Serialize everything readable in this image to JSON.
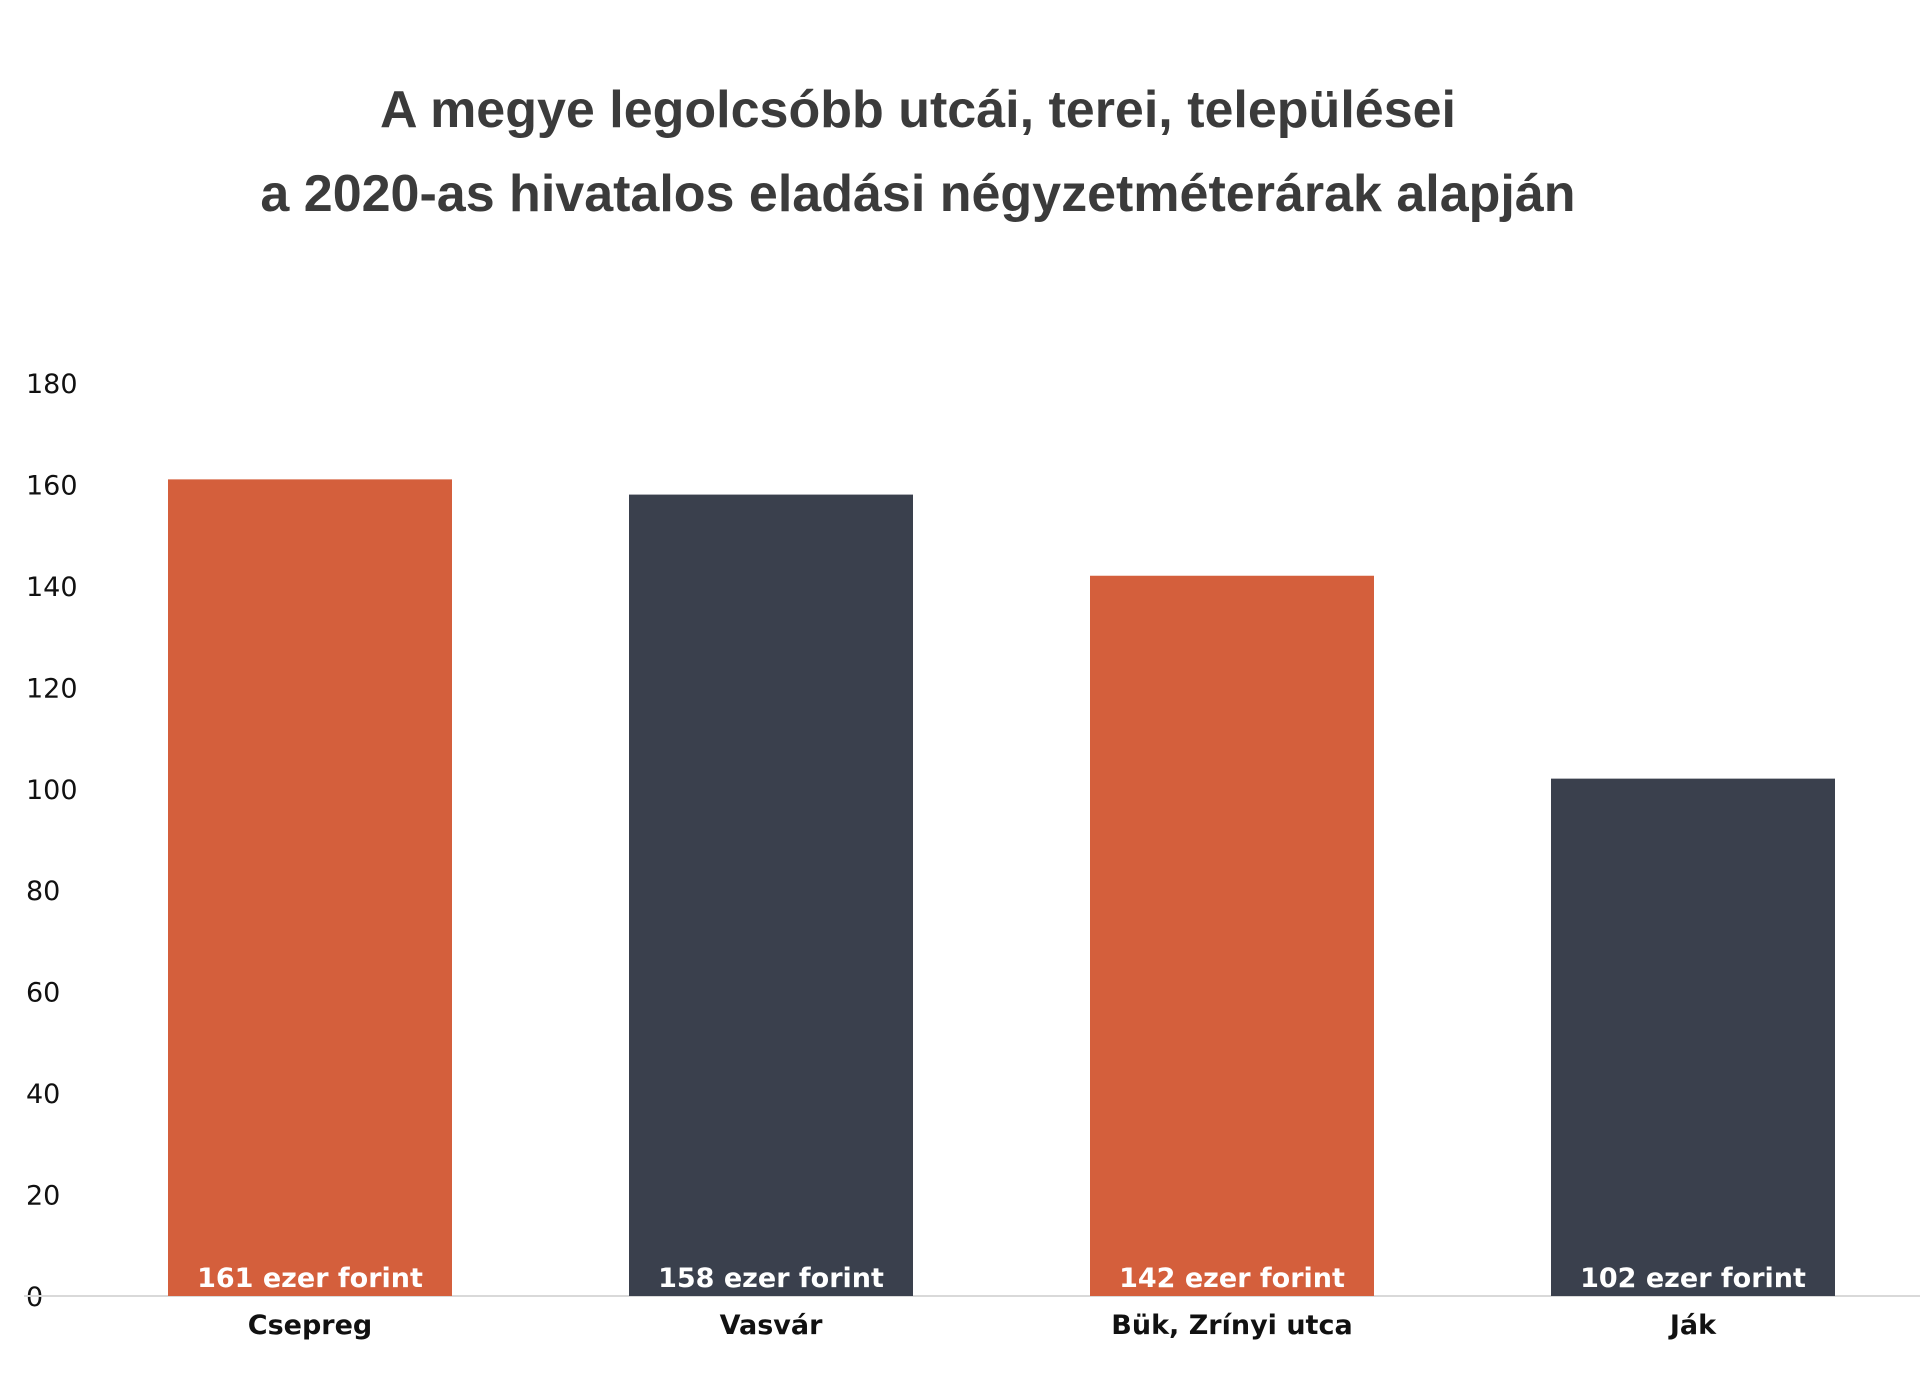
{
  "chart_data": {
    "type": "bar",
    "title_lines": [
      "A megye legolcsóbb utcái, terei, települései",
      "a 2020-as hivatalos eladási négyzetméterárak alapján"
    ],
    "categories": [
      "Csepreg",
      "Vasvár",
      "Bük, Zrínyi utca",
      "Ják"
    ],
    "values": [
      161,
      158,
      142,
      102
    ],
    "data_labels": [
      "161 ezer forint",
      "158 ezer forint",
      "142 ezer forint",
      "102 ezer forint"
    ],
    "bar_colors": [
      "#d45f3c",
      "#3a404d",
      "#d45f3c",
      "#3a404d"
    ],
    "ylim": [
      0,
      180
    ],
    "yticks": [
      0,
      20,
      40,
      60,
      80,
      100,
      120,
      140,
      160,
      180
    ],
    "grid": false,
    "legend": "none"
  }
}
